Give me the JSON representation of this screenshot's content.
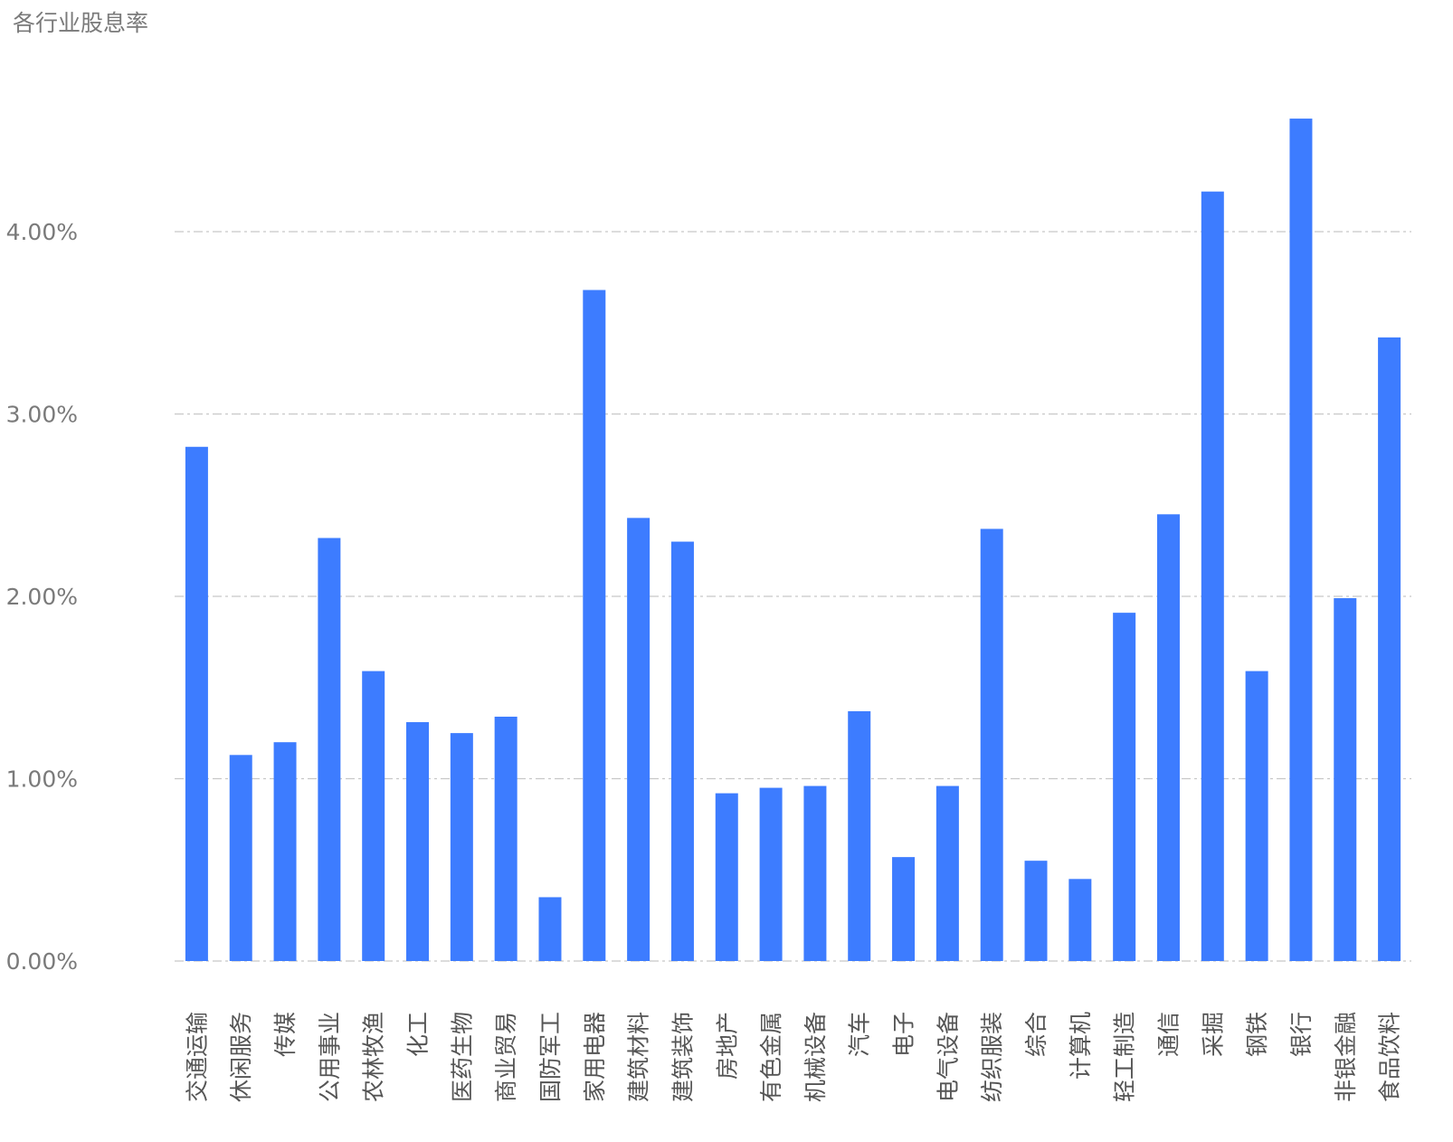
{
  "chart_data": {
    "type": "bar",
    "title": "各行业股息率",
    "xlabel": "",
    "ylabel": "",
    "ylim": [
      0,
      5
    ],
    "yticks": [
      0,
      1,
      2,
      3,
      4
    ],
    "ytick_labels": [
      "0.00%",
      "1.00%",
      "2.00%",
      "3.00%",
      "4.00%"
    ],
    "grid": true,
    "bar_color": "#3d7cff",
    "grid_color": "#c8c8c8",
    "categories": [
      "交通运输",
      "休闲服务",
      "传媒",
      "公用事业",
      "农林牧渔",
      "化工",
      "医药生物",
      "商业贸易",
      "国防军工",
      "家用电器",
      "建筑材料",
      "建筑装饰",
      "房地产",
      "有色金属",
      "机械设备",
      "汽车",
      "电子",
      "电气设备",
      "纺织服装",
      "综合",
      "计算机",
      "轻工制造",
      "通信",
      "采掘",
      "钢铁",
      "银行",
      "非银金融",
      "食品饮料"
    ],
    "values": [
      2.82,
      1.13,
      1.2,
      2.32,
      1.59,
      1.31,
      1.25,
      1.34,
      0.35,
      3.68,
      2.43,
      2.3,
      0.92,
      0.95,
      0.96,
      1.37,
      0.57,
      0.96,
      2.37,
      0.55,
      0.45,
      1.91,
      2.45,
      4.22,
      1.59,
      4.62,
      1.99,
      3.42
    ]
  }
}
